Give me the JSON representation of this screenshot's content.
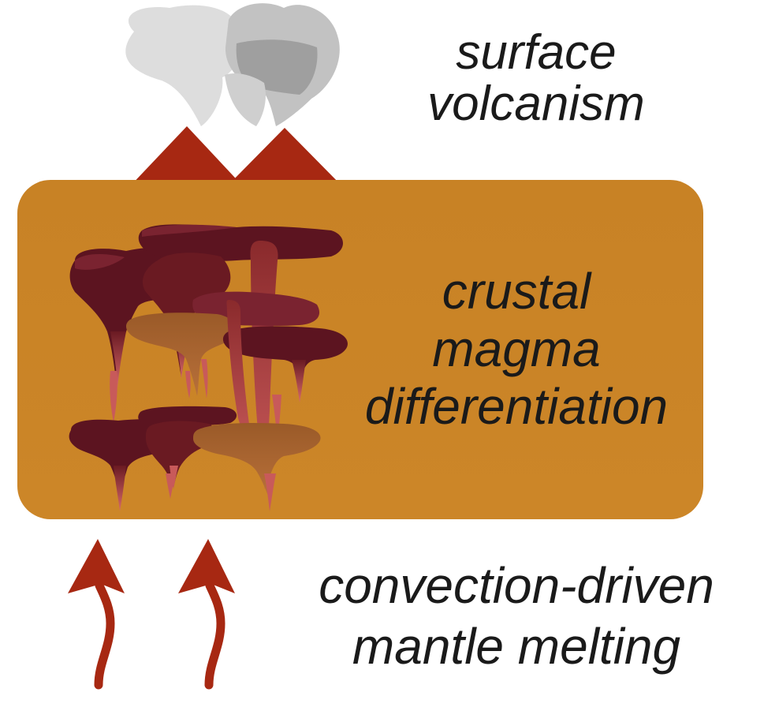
{
  "labels": {
    "surface_line1": "surface",
    "surface_line2": "volcanism",
    "crustal_line1": "crustal",
    "crustal_line2": "magma",
    "crustal_line3": "differentiation",
    "convection_line1": "convection-driven",
    "convection_line2": "mantle melting"
  },
  "colors": {
    "crust": "#cc8424",
    "volcano": "#a72812",
    "arrow": "#a72812",
    "magma_dark": "#5c1420",
    "magma_mid": "#8a2a2c",
    "magma_light": "#d86a6a",
    "magma_olive": "#9a5a28",
    "plume_light": "#dedede",
    "plume_dark": "#a9a9a9"
  },
  "icons": {
    "volcanoes": "volcano-icon",
    "plumes": "ash-plume-icon",
    "arrows": "upward-arrow-icon"
  }
}
